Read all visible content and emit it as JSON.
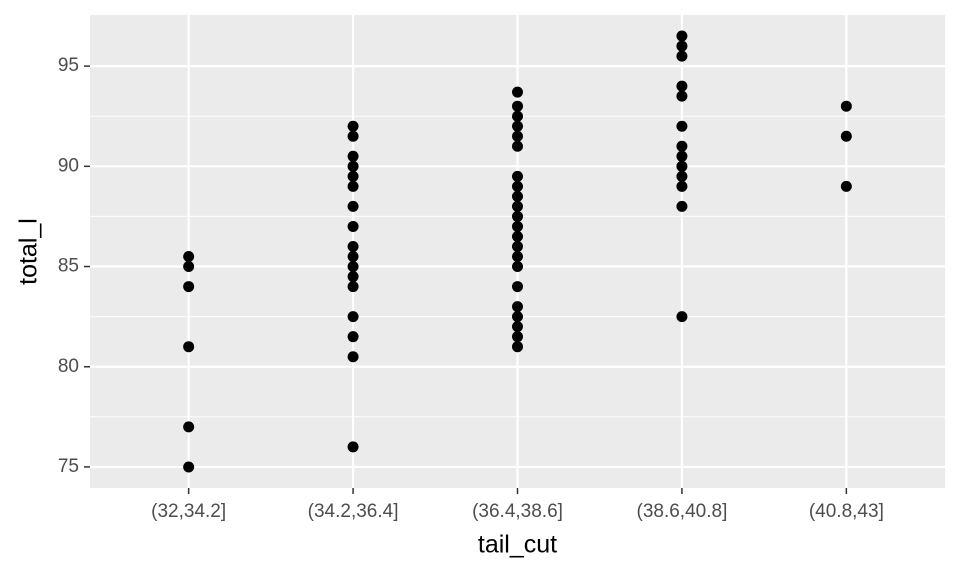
{
  "chart_data": {
    "type": "scatter",
    "x_label": "tail_cut",
    "y_label": "total_l",
    "categories": [
      "(32,34.2]",
      "(34.2,36.4]",
      "(36.4,38.6]",
      "(38.6,40.8]",
      "(40.8,43]"
    ],
    "values": [
      [
        85.5,
        85,
        84,
        81,
        77,
        75
      ],
      [
        92,
        91.5,
        90.5,
        90,
        89.5,
        89,
        88,
        87,
        86,
        85.5,
        85,
        84.5,
        84,
        82.5,
        81.5,
        80.5,
        76
      ],
      [
        93.7,
        93,
        92.5,
        92,
        91.5,
        91,
        89.5,
        89,
        88.5,
        88,
        87.5,
        87,
        86.5,
        86,
        85.5,
        85,
        84,
        83,
        82.5,
        82,
        81.5,
        81
      ],
      [
        96.5,
        96,
        95.5,
        94,
        93.5,
        92,
        91,
        90.5,
        90,
        89.5,
        89,
        88,
        82.5
      ],
      [
        93,
        91.5,
        89
      ]
    ],
    "color": "#000000",
    "ylim": [
      73.95,
      97.55
    ],
    "yticks": [
      75,
      80,
      85,
      90,
      95
    ],
    "y_minor_grid": [
      77.5,
      82.5,
      87.5,
      92.5
    ],
    "grid": true
  }
}
